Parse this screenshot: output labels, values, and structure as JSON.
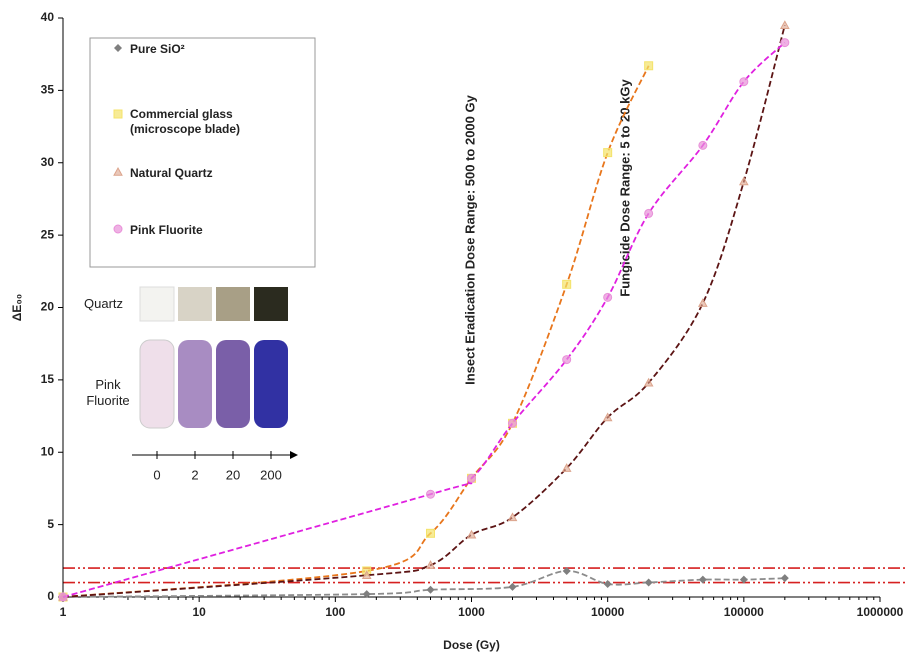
{
  "chart_data": {
    "type": "scatter",
    "x_label": "Dose (Gy)",
    "y_label": "ΔE₀₀",
    "log_x": true,
    "grid": false,
    "xlim": [
      1,
      1000000
    ],
    "ylim": [
      0,
      40
    ],
    "xticks": [
      1,
      10,
      100,
      1000,
      10000,
      100000,
      1000000
    ],
    "yticks": [
      0,
      5,
      10,
      15,
      20,
      25,
      30,
      35,
      40
    ],
    "series": [
      {
        "name": "Pure SiO²",
        "marker": "diamond",
        "color": "#7f7f7f",
        "line_color": "#8c8c8c",
        "x": [
          1,
          170,
          500,
          2000,
          5000,
          10000,
          20000,
          50000,
          100000,
          200000
        ],
        "values": [
          0,
          0.2,
          0.5,
          0.7,
          1.8,
          0.9,
          1.0,
          1.2,
          1.2,
          1.3
        ]
      },
      {
        "name": "Commercial glass (microscope blade)",
        "marker": "square",
        "color": "#f4e36a",
        "line_color": "#e8761c",
        "x": [
          1,
          170,
          500,
          1000,
          2000,
          5000,
          10000,
          20000
        ],
        "values": [
          0,
          1.8,
          4.4,
          8.2,
          12,
          21.6,
          30.7,
          36.7
        ]
      },
      {
        "name": "Natural Quartz",
        "marker": "triangle",
        "color": "#dca48c",
        "line_color": "#5c1414",
        "x": [
          1,
          170,
          500,
          1000,
          2000,
          5000,
          10000,
          20000,
          50000,
          100000,
          200000
        ],
        "values": [
          0,
          1.5,
          2.2,
          4.3,
          5.5,
          8.9,
          12.4,
          14.8,
          20.3,
          28.7,
          39.5
        ]
      },
      {
        "name": "Pink Fluorite",
        "marker": "circle",
        "color": "#e890d8",
        "line_color": "#e020e0",
        "x": [
          1,
          500,
          1000,
          2000,
          5000,
          10000,
          20000,
          50000,
          100000,
          200000
        ],
        "values": [
          0,
          7.1,
          8.2,
          12,
          16.4,
          20.7,
          26.5,
          31.2,
          35.6,
          38.3
        ]
      }
    ],
    "reference_lines": {
      "values": [
        1,
        2
      ],
      "color": "#d62020"
    },
    "annotations": [
      "Insect Eradication Dose Range: 500 to 2000 Gy",
      "Fungicide Dose Range: 5 to 20 kGy"
    ],
    "inset": {
      "quartz_label": "Quartz",
      "fluorite_label": "Pink Fluorite",
      "scale": [
        0,
        2,
        20,
        200
      ]
    }
  }
}
